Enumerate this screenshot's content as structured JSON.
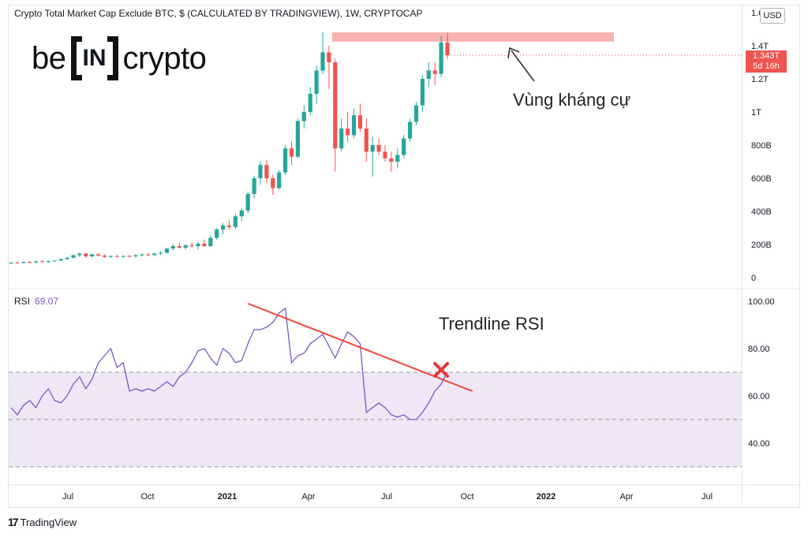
{
  "title": "Crypto Total Market Cap Exclude BTC, $ (CALCULATED BY TRADINGVIEW), 1W, CRYPTOCAP",
  "brand": {
    "left": "be",
    "box": "IN",
    "right": "crypto"
  },
  "currency_button": "USD",
  "price_tag": {
    "value": "1.343T",
    "countdown": "5d 16h"
  },
  "annotations": {
    "resistance": "Vùng kháng cự",
    "trendline": "Trendline RSI"
  },
  "rsi_label": {
    "name": "RSI",
    "value": "69.07"
  },
  "footer": {
    "logo_mark": "17",
    "logo_text": "TradingView"
  },
  "colors": {
    "up": "#26a69a",
    "down": "#ef5350",
    "rsi_line": "#7e57c2",
    "rsi_band": "#ede7f6",
    "trendline": "#f44336",
    "resistance_zone": "#f7a9a4"
  },
  "chart_data": [
    {
      "type": "candlestick",
      "title": "Crypto Total Market Cap Exclude BTC, $ (CALCULATED BY TRADINGVIEW), 1W, CRYPTOCAP",
      "x_ticks": [
        "Jul",
        "Oct",
        "2021",
        "Apr",
        "Jul",
        "Oct",
        "2022",
        "Apr",
        "Jul"
      ],
      "y_ticks": [
        "0",
        "200B",
        "400B",
        "600B",
        "800B",
        "1T",
        "1.2T",
        "1.4T",
        "1.6T"
      ],
      "y_unit": "USD billions",
      "ylim": [
        0,
        1600
      ],
      "resistance_zone": [
        1425,
        1480
      ],
      "last_price": "1.343T",
      "candles": [
        [
          85,
          92,
          80,
          90
        ],
        [
          90,
          95,
          84,
          88
        ],
        [
          88,
          96,
          85,
          94
        ],
        [
          94,
          100,
          88,
          92
        ],
        [
          92,
          100,
          86,
          98
        ],
        [
          98,
          104,
          92,
          95
        ],
        [
          95,
          102,
          90,
          99
        ],
        [
          99,
          106,
          94,
          103
        ],
        [
          103,
          115,
          100,
          112
        ],
        [
          112,
          125,
          108,
          120
        ],
        [
          120,
          140,
          115,
          135
        ],
        [
          135,
          150,
          125,
          145
        ],
        [
          145,
          150,
          120,
          128
        ],
        [
          128,
          145,
          122,
          140
        ],
        [
          140,
          148,
          130,
          132
        ],
        [
          132,
          140,
          120,
          125
        ],
        [
          125,
          135,
          118,
          130
        ],
        [
          130,
          140,
          122,
          126
        ],
        [
          126,
          135,
          120,
          130
        ],
        [
          130,
          138,
          124,
          128
        ],
        [
          128,
          140,
          122,
          135
        ],
        [
          135,
          145,
          128,
          140
        ],
        [
          140,
          150,
          130,
          136
        ],
        [
          136,
          148,
          130,
          145
        ],
        [
          145,
          160,
          138,
          150
        ],
        [
          150,
          180,
          145,
          175
        ],
        [
          175,
          200,
          165,
          190
        ],
        [
          190,
          210,
          175,
          180
        ],
        [
          180,
          200,
          170,
          195
        ],
        [
          195,
          210,
          180,
          190
        ],
        [
          190,
          215,
          170,
          205
        ],
        [
          205,
          230,
          185,
          190
        ],
        [
          190,
          255,
          185,
          240
        ],
        [
          240,
          300,
          230,
          290
        ],
        [
          290,
          330,
          260,
          315
        ],
        [
          315,
          345,
          290,
          305
        ],
        [
          305,
          385,
          295,
          370
        ],
        [
          370,
          420,
          340,
          405
        ],
        [
          405,
          520,
          390,
          505
        ],
        [
          505,
          615,
          480,
          600
        ],
        [
          600,
          700,
          560,
          680
        ],
        [
          680,
          710,
          570,
          600
        ],
        [
          600,
          620,
          500,
          540
        ],
        [
          540,
          650,
          530,
          635
        ],
        [
          635,
          800,
          620,
          780
        ],
        [
          780,
          820,
          680,
          730
        ],
        [
          730,
          960,
          720,
          945
        ],
        [
          945,
          1040,
          900,
          1000
        ],
        [
          1000,
          1150,
          980,
          1110
        ],
        [
          1110,
          1280,
          1050,
          1250
        ],
        [
          1250,
          1480,
          1230,
          1360
        ],
        [
          1360,
          1400,
          1140,
          1300
        ],
        [
          1300,
          1320,
          640,
          780
        ],
        [
          780,
          960,
          760,
          900
        ],
        [
          900,
          1000,
          820,
          860
        ],
        [
          860,
          1020,
          840,
          980
        ],
        [
          980,
          1050,
          880,
          900
        ],
        [
          900,
          960,
          700,
          760
        ],
        [
          760,
          850,
          610,
          800
        ],
        [
          800,
          840,
          740,
          760
        ],
        [
          760,
          800,
          700,
          720
        ],
        [
          720,
          760,
          640,
          700
        ],
        [
          700,
          780,
          660,
          740
        ],
        [
          740,
          860,
          720,
          840
        ],
        [
          840,
          960,
          820,
          940
        ],
        [
          940,
          1060,
          920,
          1040
        ],
        [
          1040,
          1220,
          1000,
          1200
        ],
        [
          1200,
          1300,
          1150,
          1250
        ],
        [
          1250,
          1300,
          1160,
          1230
        ],
        [
          1230,
          1460,
          1210,
          1420
        ],
        [
          1420,
          1480,
          1320,
          1343
        ]
      ]
    },
    {
      "type": "line",
      "title": "RSI",
      "value": "69.07",
      "y_ticks": [
        "40.00",
        "60.00",
        "80.00",
        "100.00"
      ],
      "ylim": [
        25,
        105
      ],
      "band": [
        30,
        70
      ],
      "midline": 50,
      "values": [
        55,
        52,
        56,
        58,
        55,
        60,
        63,
        58,
        57,
        60,
        65,
        68,
        63,
        67,
        74,
        77,
        80,
        72,
        74,
        62,
        63,
        62,
        63,
        62,
        64,
        66,
        64,
        68,
        70,
        74,
        79,
        80,
        76,
        73,
        80,
        78,
        74,
        75,
        82,
        88,
        88,
        89,
        91,
        95,
        97,
        74,
        77,
        78,
        82,
        84,
        86,
        81,
        76,
        82,
        87,
        85,
        82,
        53,
        55,
        57,
        55,
        52,
        51,
        52,
        50,
        50,
        53,
        57,
        62,
        65,
        70
      ],
      "trendline": {
        "from": [
          38,
          99
        ],
        "to": [
          74,
          62
        ]
      },
      "crossing_marker": [
        69,
        71
      ]
    }
  ]
}
